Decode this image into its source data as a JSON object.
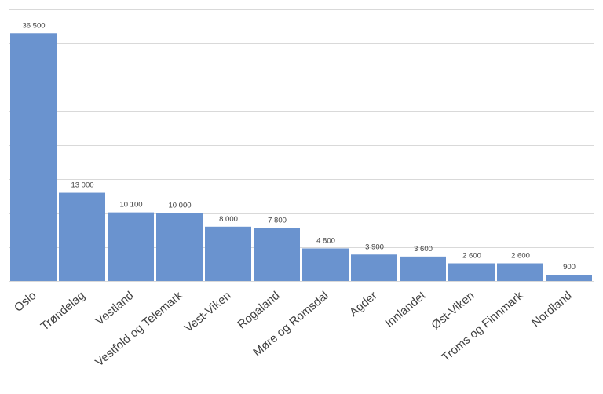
{
  "chart_data": {
    "type": "bar",
    "categories": [
      "Oslo",
      "Trøndelag",
      "Vestland",
      "Vestfold og Telemark",
      "Vest-Viken",
      "Rogaland",
      "Møre og Romsdal",
      "Agder",
      "Innlandet",
      "Øst-Viken",
      "Troms og Finnmark",
      "Nordland"
    ],
    "values": [
      36500,
      13000,
      10100,
      10000,
      8000,
      7800,
      4800,
      3900,
      3600,
      2600,
      2600,
      900
    ],
    "value_labels": [
      "36 500",
      "13 000",
      "10 100",
      "10 000",
      "8 000",
      "7 800",
      "4 800",
      "3 900",
      "3 600",
      "2 600",
      "2 600",
      "900"
    ],
    "color": "#6a93cf",
    "ylim": [
      0,
      40000
    ],
    "yticks": [
      0,
      5000,
      10000,
      15000,
      20000,
      25000,
      30000,
      35000,
      40000
    ],
    "grid": true
  }
}
